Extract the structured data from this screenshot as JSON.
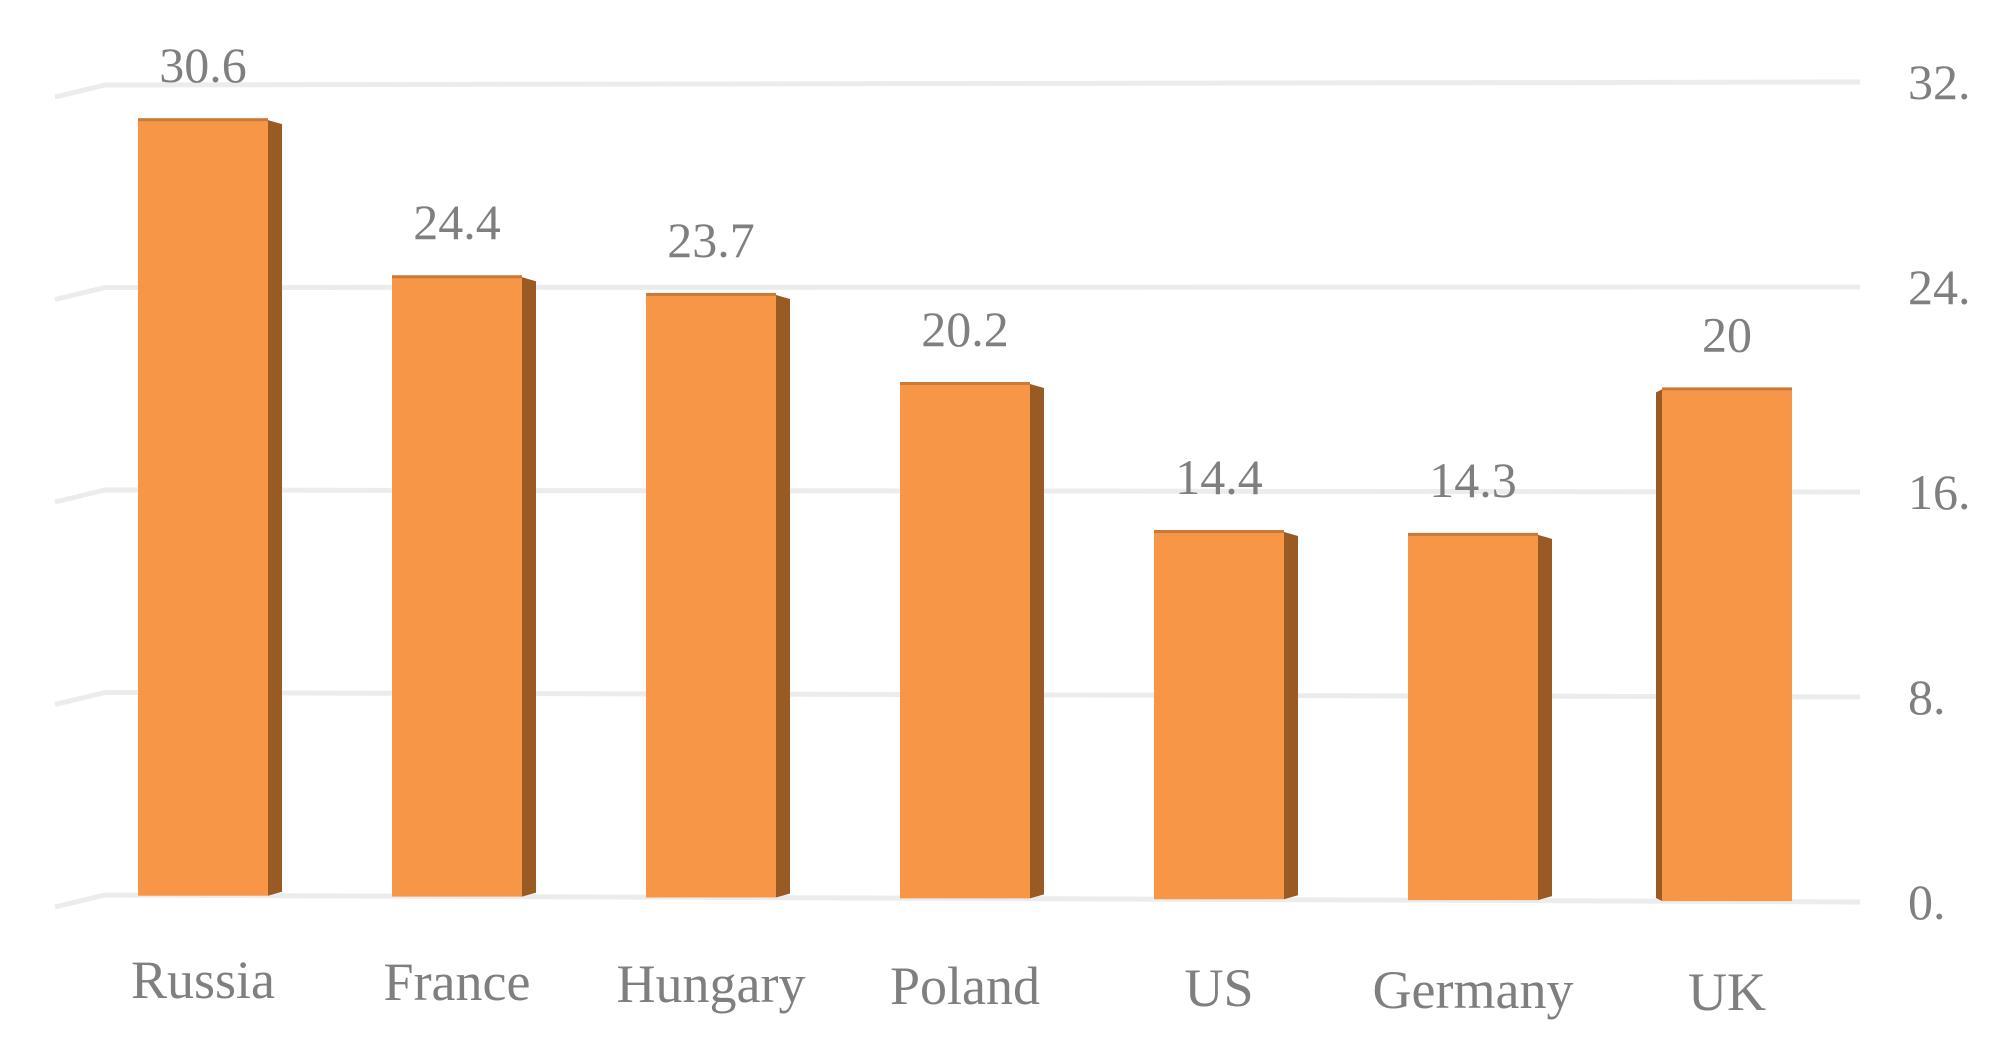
{
  "chart_data": {
    "type": "bar",
    "title": "",
    "xlabel": "",
    "ylabel": "",
    "categories": [
      "Russia",
      "France",
      "Hungary",
      "Poland",
      "US",
      "Germany",
      "UK"
    ],
    "values": [
      30.6,
      24.4,
      23.7,
      20.2,
      14.4,
      14.3,
      20
    ],
    "value_labels": [
      "30.6",
      "24.4",
      "23.7",
      "20.2",
      "14.4",
      "14.3",
      "20"
    ],
    "ylim": [
      0,
      32
    ],
    "y_ticks": [
      0,
      8,
      16,
      24,
      32
    ],
    "y_tick_labels": [
      "0.",
      "8.",
      "16.",
      "24.",
      "32."
    ],
    "y_axis_position": "right",
    "grid": true,
    "legend": "none",
    "colors": {
      "bar": "#f79646",
      "bar_side": "#9a5a24",
      "text": "#7f7f7f",
      "grid": "#ececec"
    }
  }
}
